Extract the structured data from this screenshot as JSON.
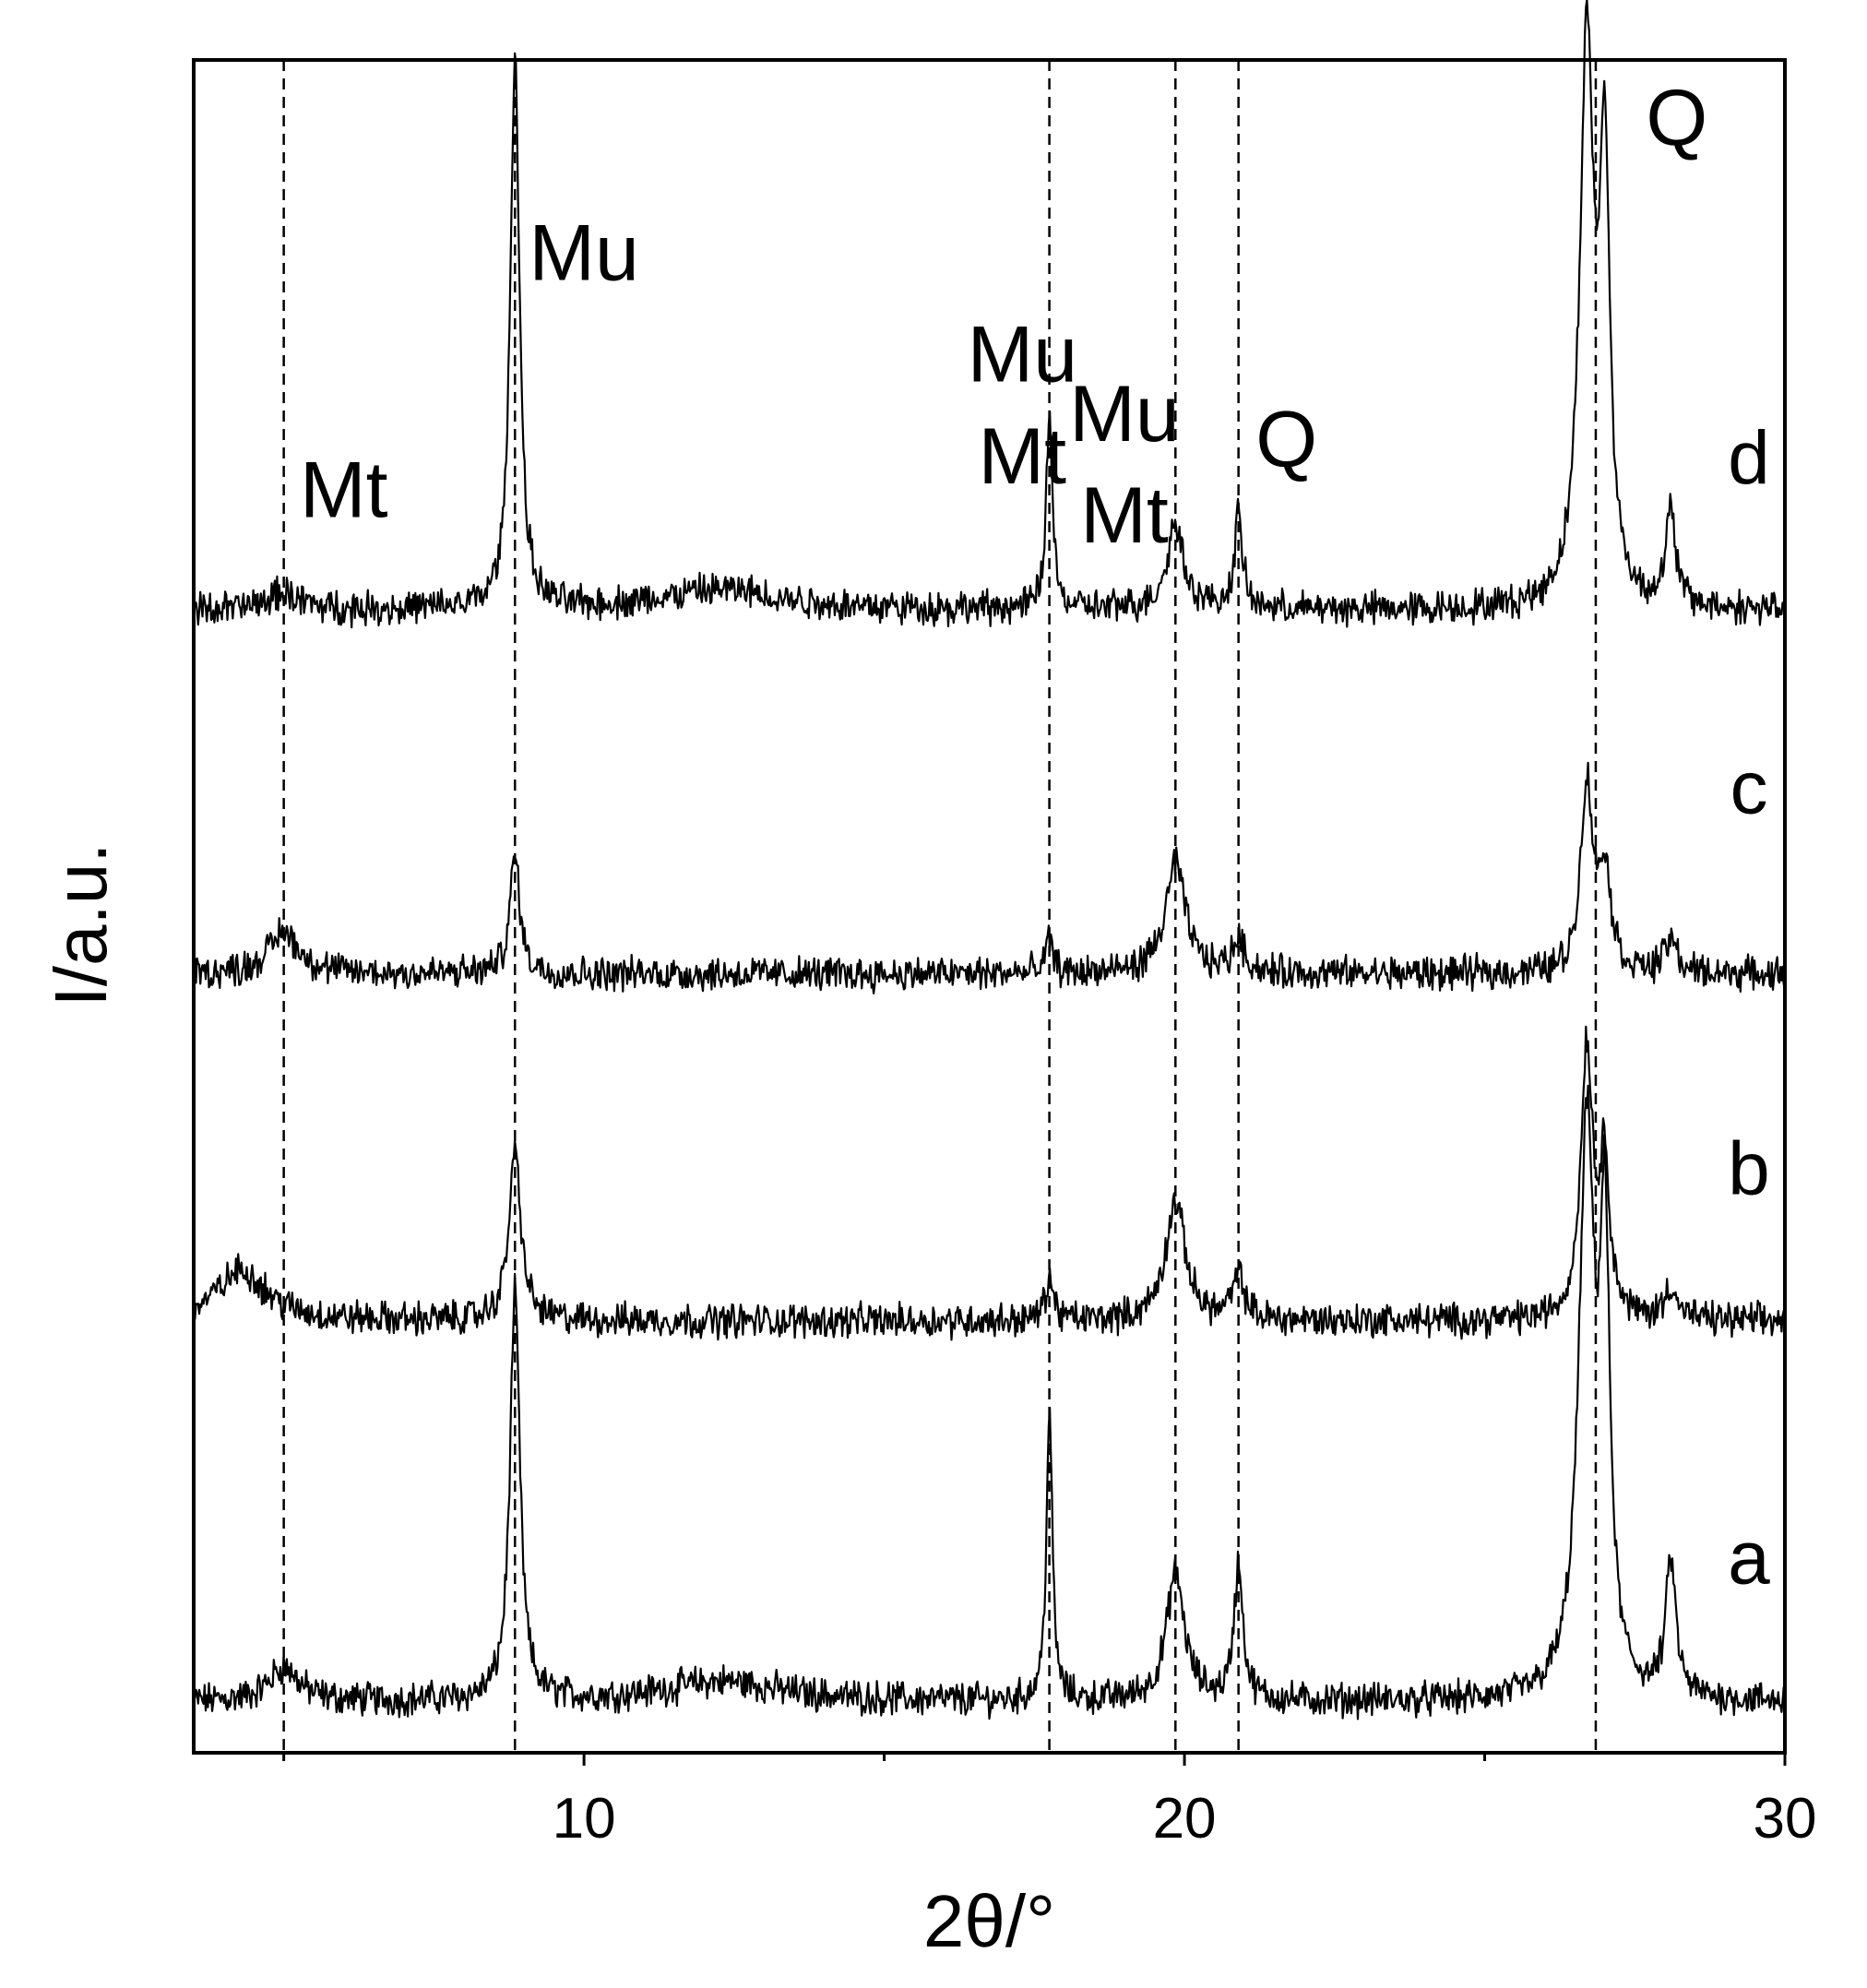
{
  "chart_data": {
    "type": "line",
    "title": "",
    "xlabel": "2θ/°",
    "ylabel": "I/a.u.",
    "xlim": [
      3.5,
      30
    ],
    "ylim": [
      0,
      100
    ],
    "x_ticks": [
      {
        "value": 10,
        "label": "10"
      },
      {
        "value": 20,
        "label": "20"
      },
      {
        "value": 30,
        "label": "30"
      }
    ],
    "x_minor_ticks": [
      5,
      15,
      25
    ],
    "y_ticks": "none",
    "grid": false,
    "reference_lines": [
      5.0,
      8.85,
      17.75,
      19.85,
      20.9,
      26.85
    ],
    "annotations": [
      {
        "text": "Mt",
        "x": 6.0,
        "y": 73.0
      },
      {
        "text": "Mu",
        "x": 10.0,
        "y": 87.0
      },
      {
        "text": "Mu",
        "x": 17.3,
        "y": 81.0
      },
      {
        "text": "Mt",
        "x": 17.3,
        "y": 75.0
      },
      {
        "text": "Mu",
        "x": 19.0,
        "y": 77.5
      },
      {
        "text": "Mt",
        "x": 19.0,
        "y": 71.5
      },
      {
        "text": "Q",
        "x": 21.7,
        "y": 76.0
      },
      {
        "text": "Q",
        "x": 28.2,
        "y": 95.0
      }
    ],
    "series": [
      {
        "name": "a",
        "baseline": 3.0,
        "peaks": [
          {
            "x": 5.0,
            "height": 2.0,
            "width": 0.3
          },
          {
            "x": 8.85,
            "height": 24.0,
            "width": 0.1
          },
          {
            "x": 12.3,
            "height": 1.2,
            "width": 1.2
          },
          {
            "x": 17.75,
            "height": 17.0,
            "width": 0.06
          },
          {
            "x": 19.85,
            "height": 7.5,
            "width": 0.18
          },
          {
            "x": 20.9,
            "height": 8.0,
            "width": 0.09
          },
          {
            "x": 26.7,
            "height": 33.0,
            "width": 0.16
          },
          {
            "x": 27.0,
            "height": 25.0,
            "width": 0.1
          },
          {
            "x": 28.1,
            "height": 8.0,
            "width": 0.1
          }
        ],
        "label_x": 29.4,
        "label_y": 10.0
      },
      {
        "name": "b",
        "baseline": 25.5,
        "peaks": [
          {
            "x": 4.3,
            "height": 3.0,
            "width": 0.5
          },
          {
            "x": 8.85,
            "height": 10.0,
            "width": 0.12
          },
          {
            "x": 17.75,
            "height": 2.5,
            "width": 0.08
          },
          {
            "x": 19.85,
            "height": 7.0,
            "width": 0.2
          },
          {
            "x": 20.9,
            "height": 2.5,
            "width": 0.12
          },
          {
            "x": 26.7,
            "height": 16.0,
            "width": 0.12
          },
          {
            "x": 27.0,
            "height": 9.0,
            "width": 0.1
          },
          {
            "x": 28.1,
            "height": 2.0,
            "width": 0.12
          }
        ],
        "label_x": 29.4,
        "label_y": 33.0
      },
      {
        "name": "c",
        "baseline": 46.0,
        "peaks": [
          {
            "x": 5.0,
            "height": 2.5,
            "width": 0.3
          },
          {
            "x": 8.85,
            "height": 7.0,
            "width": 0.1
          },
          {
            "x": 17.75,
            "height": 2.0,
            "width": 0.07
          },
          {
            "x": 19.85,
            "height": 6.5,
            "width": 0.2
          },
          {
            "x": 20.9,
            "height": 2.0,
            "width": 0.12
          },
          {
            "x": 26.7,
            "height": 11.0,
            "width": 0.12
          },
          {
            "x": 27.0,
            "height": 6.0,
            "width": 0.12
          },
          {
            "x": 28.1,
            "height": 2.0,
            "width": 0.12
          }
        ],
        "label_x": 29.4,
        "label_y": 55.5
      },
      {
        "name": "d",
        "baseline": 67.5,
        "peaks": [
          {
            "x": 5.0,
            "height": 1.0,
            "width": 0.3
          },
          {
            "x": 8.85,
            "height": 33.0,
            "width": 0.09
          },
          {
            "x": 12.3,
            "height": 1.2,
            "width": 1.2
          },
          {
            "x": 17.75,
            "height": 12.0,
            "width": 0.06
          },
          {
            "x": 19.85,
            "height": 5.0,
            "width": 0.17
          },
          {
            "x": 20.9,
            "height": 5.5,
            "width": 0.08
          },
          {
            "x": 26.7,
            "height": 33.0,
            "width": 0.14
          },
          {
            "x": 27.0,
            "height": 25.0,
            "width": 0.1
          },
          {
            "x": 28.1,
            "height": 5.5,
            "width": 0.1
          }
        ],
        "label_x": 29.4,
        "label_y": 75.0
      }
    ]
  },
  "colors": {
    "line": "#000000",
    "background": "#ffffff"
  }
}
